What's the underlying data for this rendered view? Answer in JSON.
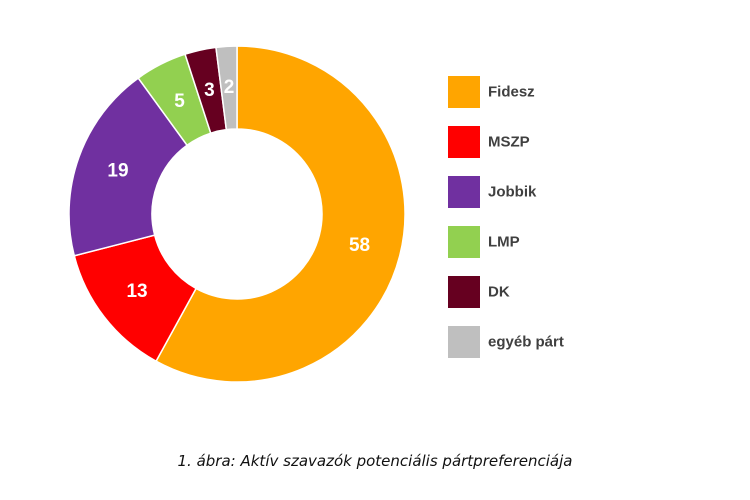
{
  "chart_data": {
    "type": "pie",
    "donut": true,
    "categories": [
      "Fidesz",
      "MSZP",
      "Jobbik",
      "LMP",
      "DK",
      "egyéb párt"
    ],
    "values": [
      58,
      13,
      19,
      5,
      3,
      2
    ],
    "colors": [
      "#FFA500",
      "#FF0000",
      "#7030A0",
      "#92D050",
      "#660020",
      "#BFBFBF"
    ],
    "legend_position": "right",
    "start_angle_deg": 0,
    "direction": "clockwise"
  },
  "caption": "1. ábra: Aktív szavazók potenciális pártpreferenciája"
}
